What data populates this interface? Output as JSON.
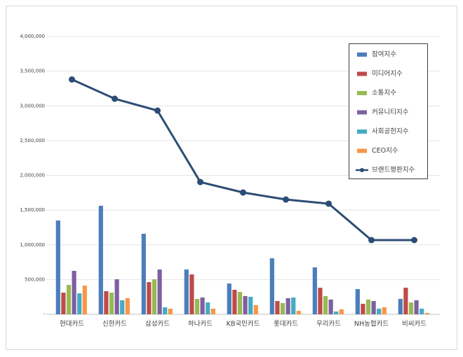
{
  "chart_data": {
    "type": "bar",
    "categories": [
      "현대카드",
      "신한카드",
      "삼성카드",
      "하나카드",
      "KB국민카드",
      "롯데카드",
      "우리카드",
      "NH농협카드",
      "비씨카드"
    ],
    "series": [
      {
        "name": "참여지수",
        "color": "#4a7ebb",
        "values": [
          1350000,
          1562000,
          1159000,
          645000,
          443000,
          806000,
          675000,
          363000,
          222000
        ]
      },
      {
        "name": "미디어지수",
        "color": "#be4b48",
        "values": [
          312000,
          333000,
          463000,
          574000,
          353000,
          191000,
          383000,
          151000,
          383000
        ]
      },
      {
        "name": "소통지수",
        "color": "#98b954",
        "values": [
          423000,
          312000,
          504000,
          222000,
          322000,
          161000,
          262000,
          212000,
          171000
        ]
      },
      {
        "name": "커뮤니티지수",
        "color": "#7d60a0",
        "values": [
          625000,
          504000,
          645000,
          242000,
          262000,
          232000,
          212000,
          191000,
          202000
        ]
      },
      {
        "name": "사회공헌지수",
        "color": "#46aac5",
        "values": [
          302000,
          202000,
          101000,
          171000,
          252000,
          242000,
          40000,
          81000,
          81000
        ]
      },
      {
        "name": "CEO지수",
        "color": "#f79646",
        "values": [
          413000,
          232000,
          81000,
          81000,
          131000,
          50000,
          71000,
          101000,
          20000
        ]
      },
      {
        "name": "브랜드평판지수",
        "color": "#2c4d75",
        "type": "line",
        "values": [
          3380000,
          3103000,
          2932000,
          1904000,
          1753000,
          1652000,
          1592000,
          1068000,
          1068000
        ]
      }
    ],
    "ylim": [
      0,
      4000000
    ],
    "yticks": [
      {
        "value": 0,
        "label": "-"
      },
      {
        "value": 500000,
        "label": "500,000"
      },
      {
        "value": 1000000,
        "label": "1,000,000"
      },
      {
        "value": 1500000,
        "label": "1,500,000"
      },
      {
        "value": 2000000,
        "label": "2,000,000"
      },
      {
        "value": 2500000,
        "label": "2,500,000"
      },
      {
        "value": 3000000,
        "label": "3,000,000"
      },
      {
        "value": 3500000,
        "label": "3,500,000"
      },
      {
        "value": 4000000,
        "label": "4,000,000"
      }
    ],
    "grid": true,
    "legend": "upper right"
  }
}
